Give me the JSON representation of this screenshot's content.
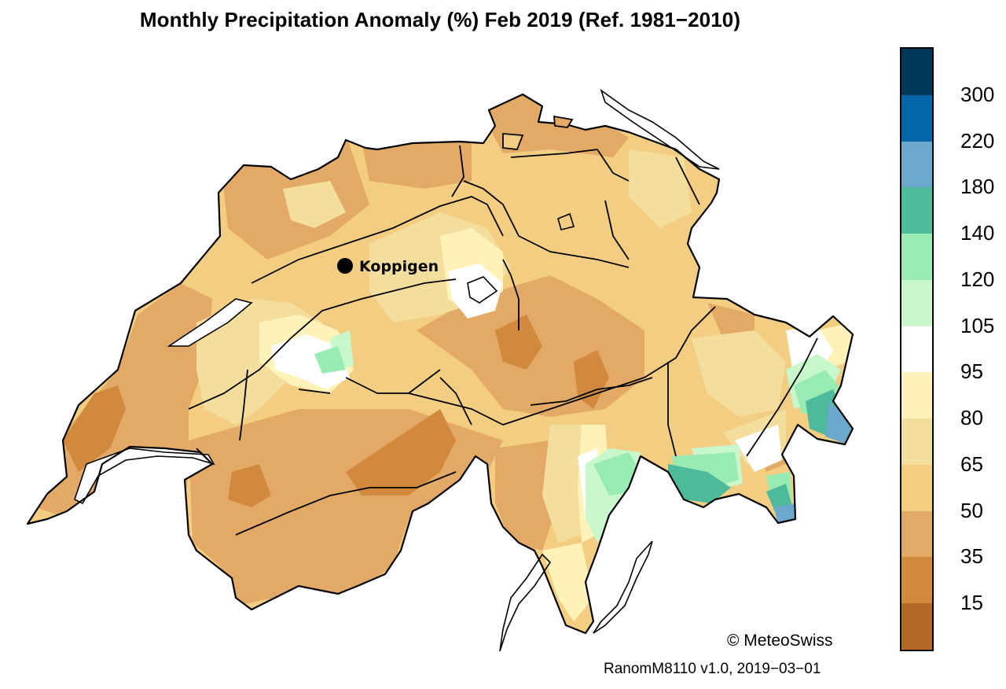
{
  "title": "Monthly Precipitation Anomaly (%) Feb 2019  (Ref. 1981−2010)",
  "station": {
    "name": "Koppigen"
  },
  "legend": {
    "colors": [
      "#003859",
      "#0567a8",
      "#6aa8cc",
      "#4dbb9b",
      "#98ecb3",
      "#c9f7cc",
      "#ffffff",
      "#fff2b8",
      "#f4de9e",
      "#f2cd82",
      "#e3aa67",
      "#d1893e",
      "#b46a26"
    ],
    "ticks": [
      "300",
      "220",
      "180",
      "140",
      "120",
      "105",
      "95",
      "80",
      "65",
      "50",
      "35",
      "15"
    ]
  },
  "copyright": "© MeteoSwiss",
  "product": "RanomM8110 v1.0, 2019−03−01"
}
